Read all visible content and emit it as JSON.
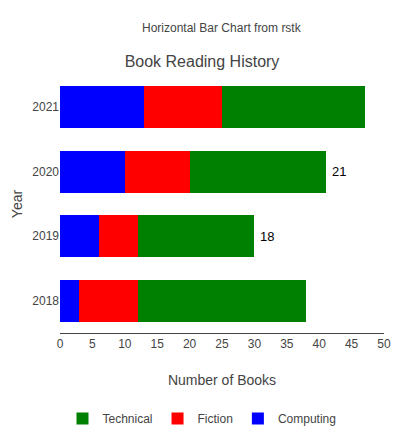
{
  "chart_data": {
    "type": "bar",
    "orientation": "horizontal",
    "stacked": true,
    "title": "Book Reading History",
    "subtitle": "Horizontal Bar Chart from rstk",
    "xlabel": "Number of Books",
    "ylabel": "Year",
    "categories": [
      "2018",
      "2019",
      "2020",
      "2021"
    ],
    "series": [
      {
        "name": "Computing",
        "color": "#0000ff",
        "values": [
          3,
          6,
          10,
          13
        ]
      },
      {
        "name": "Fiction",
        "color": "#ff0000",
        "values": [
          9,
          6,
          10,
          12
        ]
      },
      {
        "name": "Technical",
        "color": "#008000",
        "values": [
          26,
          18,
          21,
          22
        ]
      }
    ],
    "annotations": [
      {
        "category": "2019",
        "text": "18"
      },
      {
        "category": "2020",
        "text": "21"
      }
    ],
    "xlim": [
      0,
      50
    ],
    "xticks": [
      0,
      5,
      10,
      15,
      20,
      25,
      30,
      35,
      40,
      45,
      50
    ],
    "grid": false,
    "legend": "bottom"
  }
}
